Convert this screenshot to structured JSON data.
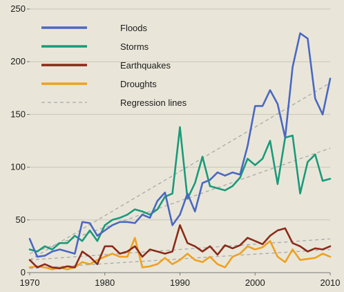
{
  "chart_data": {
    "type": "line",
    "title": "",
    "xlabel": "",
    "ylabel": "",
    "xlim": [
      1970,
      2010
    ],
    "ylim": [
      0,
      250
    ],
    "x_ticks": [
      1970,
      1980,
      1990,
      2000,
      2010
    ],
    "y_ticks": [
      0,
      50,
      100,
      150,
      200,
      250
    ],
    "grid": "horizontal",
    "legend_position": "top-left",
    "x": [
      1970,
      1971,
      1972,
      1973,
      1974,
      1975,
      1976,
      1977,
      1978,
      1979,
      1980,
      1981,
      1982,
      1983,
      1984,
      1985,
      1986,
      1987,
      1988,
      1989,
      1990,
      1991,
      1992,
      1993,
      1994,
      1995,
      1996,
      1997,
      1998,
      1999,
      2000,
      2001,
      2002,
      2003,
      2004,
      2005,
      2006,
      2007,
      2008,
      2009,
      2010
    ],
    "series": [
      {
        "name": "Floods",
        "color": "#4a67c2",
        "values": [
          32,
          15,
          16,
          20,
          22,
          20,
          18,
          48,
          47,
          35,
          40,
          45,
          48,
          48,
          47,
          55,
          52,
          68,
          76,
          45,
          55,
          75,
          58,
          85,
          88,
          95,
          92,
          95,
          93,
          120,
          158,
          158,
          173,
          160,
          128,
          195,
          227,
          222,
          165,
          150,
          184
        ]
      },
      {
        "name": "Storms",
        "color": "#1a9a7a",
        "values": [
          22,
          20,
          25,
          22,
          28,
          28,
          35,
          30,
          40,
          30,
          45,
          50,
          52,
          55,
          60,
          58,
          55,
          60,
          72,
          75,
          138,
          70,
          85,
          110,
          82,
          80,
          78,
          82,
          90,
          108,
          102,
          108,
          125,
          84,
          128,
          130,
          75,
          105,
          112,
          87,
          89
        ]
      },
      {
        "name": "Earthquakes",
        "color": "#8b2a18",
        "values": [
          12,
          5,
          8,
          5,
          4,
          6,
          5,
          20,
          15,
          8,
          25,
          25,
          18,
          20,
          25,
          15,
          22,
          20,
          18,
          20,
          45,
          28,
          25,
          20,
          25,
          17,
          26,
          23,
          26,
          33,
          30,
          27,
          35,
          40,
          42,
          28,
          25,
          20,
          23,
          22,
          25
        ]
      },
      {
        "name": "Droughts",
        "color": "#f0a020",
        "values": [
          5,
          6,
          5,
          3,
          5,
          3,
          5,
          10,
          8,
          12,
          15,
          18,
          15,
          15,
          33,
          5,
          6,
          8,
          14,
          8,
          12,
          18,
          12,
          10,
          15,
          8,
          5,
          15,
          18,
          25,
          22,
          24,
          30,
          15,
          10,
          22,
          12,
          13,
          14,
          18,
          15
        ]
      }
    ],
    "regression_lines": {
      "name": "Regression lines",
      "color": "#a8a8a8",
      "lines": [
        {
          "series": "Floods",
          "start": [
            1970,
            12
          ],
          "end": [
            2010,
            180
          ]
        },
        {
          "series": "Storms",
          "start": [
            1970,
            18
          ],
          "end": [
            2010,
            118
          ]
        },
        {
          "series": "Earthquakes",
          "start": [
            1970,
            12
          ],
          "end": [
            2010,
            32
          ]
        },
        {
          "series": "Droughts",
          "start": [
            1970,
            4
          ],
          "end": [
            2010,
            22
          ]
        }
      ]
    },
    "legend": [
      "Floods",
      "Storms",
      "Earthquakes",
      "Droughts",
      "Regression lines"
    ]
  }
}
